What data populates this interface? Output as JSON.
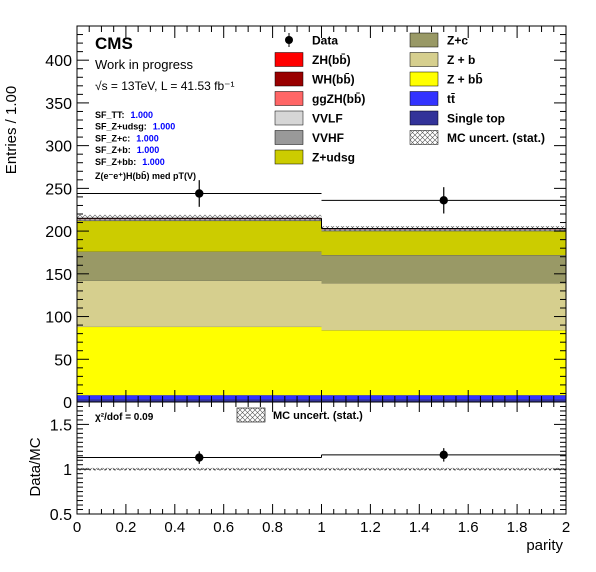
{
  "header": {
    "experiment": "CMS",
    "status": "Work in progress",
    "energy_lumi": "√s = 13TeV, L = 41.53 fb⁻¹"
  },
  "scale_factors": [
    {
      "label": "SF_TT:",
      "value": "1.000"
    },
    {
      "label": "SF_Z+udsg:",
      "value": "1.000"
    },
    {
      "label": "SF_Z+c:",
      "value": "1.000"
    },
    {
      "label": "SF_Z+b:",
      "value": "1.000"
    },
    {
      "label": "SF_Z+bb:",
      "value": "1.000"
    }
  ],
  "region_label": "Z(e⁻e⁺)H(bb̄) med pT(V)",
  "ratio_panel": {
    "chi2_label": "χ²/dof = 0.09",
    "unc_legend": "MC uncert. (stat.)"
  },
  "colors": {
    "data": "#000000",
    "ZH_bb": "#ff0000",
    "WH_bb": "#990000",
    "ggZH_bb": "#ff6666",
    "VVLF": "#d6d6d6",
    "VVHF": "#999999",
    "Z_udsg": "#cccc00",
    "Z_c": "#999966",
    "Z_b": "#d6cf8e",
    "Z_bb": "#ffff00",
    "ttbar": "#3333ff",
    "single_top": "#333399",
    "selected_value": "#0000ff"
  },
  "chart_data": {
    "type": "bar",
    "stacked": true,
    "xlabel": "parity",
    "ylabel": "Entries / 1.00",
    "ratio_ylabel": "Data/MC",
    "x_bins": [
      [
        0,
        1
      ],
      [
        1,
        2
      ]
    ],
    "xlim": [
      0,
      2
    ],
    "ylim": [
      0,
      440
    ],
    "ratio_ylim": [
      0.5,
      1.75
    ],
    "xticks": [
      "0",
      "0.2",
      "0.4",
      "0.6",
      "0.8",
      "1",
      "1.2",
      "1.4",
      "1.6",
      "1.8",
      "2"
    ],
    "yticks": [
      "0",
      "50",
      "100",
      "150",
      "200",
      "250",
      "300",
      "350",
      "400"
    ],
    "ratio_yticks": [
      "0.5",
      "1",
      "1.5"
    ],
    "series": [
      {
        "name": "Single top",
        "values": [
          3,
          3
        ]
      },
      {
        "name": "tt̄",
        "values": [
          5,
          5
        ]
      },
      {
        "name": "Z + bb̄",
        "values": [
          80,
          76
        ]
      },
      {
        "name": "Z + b",
        "values": [
          54,
          55
        ]
      },
      {
        "name": "Z+c",
        "values": [
          34,
          33
        ]
      },
      {
        "name": "Z+udsg",
        "values": [
          36,
          28
        ]
      },
      {
        "name": "VVHF",
        "values": [
          1,
          1
        ]
      },
      {
        "name": "VVLF",
        "values": [
          1,
          1
        ]
      },
      {
        "name": "ggZH(bb̄)",
        "values": [
          0.5,
          0.5
        ]
      },
      {
        "name": "WH(bb̄)",
        "values": [
          0,
          0
        ]
      },
      {
        "name": "ZH(bb̄)",
        "values": [
          0.5,
          0.5
        ]
      }
    ],
    "mc_total": [
      215,
      203
    ],
    "mc_uncert_band": [
      [
        212,
        219
      ],
      [
        200,
        206
      ]
    ],
    "data": {
      "name": "Data",
      "x": [
        0.5,
        1.5
      ],
      "y": [
        244,
        236
      ],
      "yerr": [
        15.6,
        15.4
      ]
    },
    "ratio": {
      "x": [
        0.5,
        1.5
      ],
      "y": [
        1.13,
        1.16
      ],
      "yerr": [
        0.07,
        0.075
      ],
      "unc_band": [
        0.985,
        1.015
      ]
    },
    "legend": {
      "placement": "top-right",
      "left_column": [
        "Data",
        "ZH(bb̄)",
        "WH(bb̄)",
        "ggZH(bb̄)",
        "VVLF",
        "VVHF",
        "Z+udsg"
      ],
      "right_column": [
        "Z+c",
        "Z + b",
        "Z + bb̄",
        "tt̄",
        "Single top",
        "MC uncert. (stat.)"
      ]
    }
  }
}
